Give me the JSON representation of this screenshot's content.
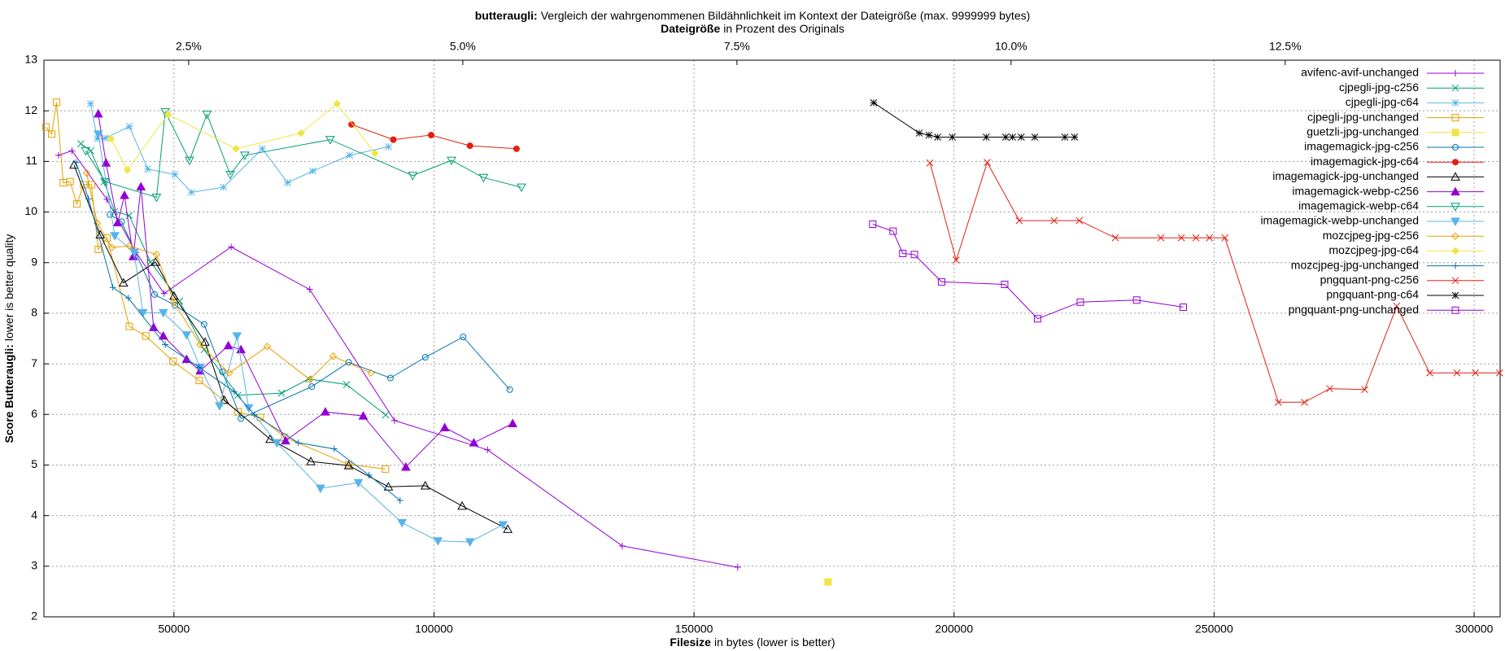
{
  "chart_data": {
    "type": "line",
    "title_bold": "butteraugli:",
    "title": "Vergleich der wahrgenommenen Bildähnlichkeit im Kontext der Dateigröße (max. 9999999 bytes)",
    "x2label_bold": "Dateigröße",
    "x2label": "in Prozent des Originals",
    "xlabel_bold": "Filesize",
    "xlabel": "in bytes (lower is better)",
    "ylabel_bold": "Score Butteraugli:",
    "ylabel": "lower is better quality",
    "xlim": [
      25000,
      305000
    ],
    "xticks": [
      50000,
      100000,
      150000,
      200000,
      250000,
      300000
    ],
    "x2lim": [
      1.18,
      14.46
    ],
    "x2ticks": [
      {
        "value": 2.5,
        "label": "2.5%"
      },
      {
        "value": 5.0,
        "label": "5.0%"
      },
      {
        "value": 7.5,
        "label": "7.5%"
      },
      {
        "value": 10.0,
        "label": "10.0%"
      },
      {
        "value": 12.5,
        "label": "12.5%"
      }
    ],
    "ylim": [
      2,
      13
    ],
    "yticks": [
      2,
      3,
      4,
      5,
      6,
      7,
      8,
      9,
      10,
      11,
      12,
      13
    ],
    "grid": true,
    "legend": "top right",
    "series": [
      {
        "name": "avifenc-avif-unchanged",
        "color": "#9400d3",
        "marker": "plus",
        "x": [
          27800,
          30400,
          37100,
          42700,
          48100,
          61000,
          76100,
          92400,
          110300,
          136200,
          158400
        ],
        "values": [
          11.12,
          11.21,
          10.25,
          9.2,
          8.39,
          9.31,
          8.47,
          5.88,
          5.3,
          3.4,
          2.98
        ]
      },
      {
        "name": "cjpegli-jpg-c256",
        "color": "#009e73",
        "marker": "cross",
        "x": [
          32100,
          34000,
          36600,
          38600,
          41400,
          45500,
          51100,
          55800,
          62300,
          70700,
          75900,
          83200,
          90700
        ],
        "values": [
          11.35,
          11.21,
          10.6,
          10.01,
          9.93,
          9.01,
          8.24,
          7.28,
          6.38,
          6.42,
          6.7,
          6.59,
          5.99
        ]
      },
      {
        "name": "cjpegli-jpg-c64",
        "color": "#56b4e9",
        "marker": "star",
        "x": [
          33960,
          35260,
          36760,
          41420,
          44970,
          50190,
          53360,
          59520,
          66990,
          71840,
          76690,
          83780,
          91240
        ],
        "values": [
          12.14,
          11.45,
          11.46,
          11.69,
          10.85,
          10.74,
          10.39,
          10.49,
          11.25,
          10.58,
          10.81,
          11.12,
          11.29
        ]
      },
      {
        "name": "cjpegli-jpg-unchanged",
        "color": "#e69f00",
        "marker": "square",
        "x": [
          25370,
          26490,
          27430,
          28730,
          30040,
          31340,
          32650,
          34140,
          35450,
          37130,
          41420,
          44590,
          49820,
          54860,
          62320,
          66610,
          71280,
          83590,
          90680
        ],
        "values": [
          11.68,
          11.54,
          12.17,
          10.58,
          10.6,
          10.16,
          10.54,
          10.54,
          9.26,
          9.49,
          7.74,
          7.55,
          7.05,
          6.67,
          6.05,
          5.94,
          5.55,
          5.01,
          4.92
        ]
      },
      {
        "name": "guetzli-jpg-unchanged",
        "color": "#f0e442",
        "marker": "filled-square",
        "x": [
          175770
        ],
        "values": [
          2.69
        ]
      },
      {
        "name": "imagemagick-jpg-c256",
        "color": "#0072b2",
        "marker": "circle",
        "x": [
          37690,
          39930,
          46270,
          50190,
          55790,
          59330,
          62880,
          76500,
          83590,
          91620,
          98330,
          105610,
          114570
        ],
        "values": [
          9.95,
          9.81,
          8.37,
          8.16,
          7.78,
          6.84,
          5.92,
          6.55,
          7.03,
          6.72,
          7.13,
          7.53,
          6.49
        ]
      },
      {
        "name": "imagemagick-jpg-c64",
        "color": "#e51e10",
        "marker": "filled-circle",
        "x": [
          84150,
          92180,
          99450,
          106920,
          115870
        ],
        "values": [
          11.73,
          11.43,
          11.52,
          11.31,
          11.25
        ]
      },
      {
        "name": "imagemagick-jpg-unchanged",
        "color": "#000000",
        "marker": "triangle",
        "x": [
          30780,
          35820,
          40300,
          46460,
          50000,
          55980,
          59710,
          68480,
          76320,
          83590,
          91240,
          98330,
          105420,
          114190
        ],
        "values": [
          10.93,
          9.55,
          8.6,
          9.01,
          8.34,
          7.43,
          6.28,
          5.51,
          5.07,
          4.99,
          4.57,
          4.59,
          4.19,
          3.73
        ]
      },
      {
        "name": "imagemagick-webp-c256",
        "color": "#9400d3",
        "marker": "filled-triangle",
        "x": [
          35450,
          36940,
          39180,
          40490,
          42170,
          43660,
          46090,
          47950,
          52430,
          55040,
          60450,
          62880,
          71460,
          79110,
          86390,
          94600,
          102070,
          107660,
          115130
        ],
        "values": [
          11.94,
          10.97,
          9.79,
          10.33,
          9.12,
          10.5,
          7.72,
          7.55,
          7.09,
          6.86,
          7.36,
          7.28,
          5.48,
          6.05,
          5.97,
          4.96,
          5.74,
          5.44,
          5.82
        ]
      },
      {
        "name": "imagemagick-webp-c64",
        "color": "#009e73",
        "marker": "triangle-down",
        "x": [
          33020,
          36760,
          46650,
          48330,
          52990,
          56350,
          60830,
          63630,
          80050,
          95910,
          103370,
          109530,
          116810
        ],
        "values": [
          11.21,
          10.6,
          10.29,
          11.98,
          11.02,
          11.93,
          10.74,
          11.12,
          11.43,
          10.72,
          11.02,
          10.68,
          10.49
        ]
      },
      {
        "name": "imagemagick-webp-unchanged",
        "color": "#56b4e9",
        "marker": "filled-triangle-down",
        "x": [
          35450,
          38620,
          42350,
          44030,
          47950,
          52430,
          55040,
          58770,
          62130,
          64370,
          69780,
          78180,
          85460,
          93850,
          100760,
          106920,
          113260
        ],
        "values": [
          11.54,
          9.53,
          9.2,
          8.01,
          8.01,
          7.57,
          6.93,
          6.17,
          7.55,
          6.13,
          5.44,
          4.54,
          4.65,
          3.86,
          3.5,
          3.48,
          3.82
        ]
      },
      {
        "name": "mozcjpeg-jpg-c256",
        "color": "#e69f00",
        "marker": "diamond",
        "x": [
          33210,
          35260,
          38060,
          41420,
          46650,
          50000,
          55040,
          60640,
          67920,
          76130,
          80610,
          87880
        ],
        "values": [
          10.77,
          9.78,
          9.3,
          9.33,
          9.16,
          8.22,
          7.38,
          6.82,
          7.34,
          6.69,
          7.15,
          6.82
        ]
      },
      {
        "name": "mozcjpeg-jpg-c64",
        "color": "#f0e442",
        "marker": "filled-diamond",
        "x": [
          37880,
          41050,
          48880,
          61950,
          74450,
          81350,
          88630
        ],
        "values": [
          11.45,
          10.83,
          11.93,
          11.25,
          11.56,
          12.14,
          11.16
        ]
      },
      {
        "name": "mozcjpeg-jpg-unchanged",
        "color": "#0072b2",
        "marker": "plus",
        "x": [
          31160,
          33580,
          38250,
          41230,
          48330,
          54860,
          61580,
          65490,
          73890,
          80790,
          87510,
          93480
        ],
        "values": [
          10.98,
          10.26,
          8.51,
          8.3,
          7.38,
          6.93,
          6.45,
          5.99,
          5.44,
          5.32,
          4.8,
          4.3
        ]
      },
      {
        "name": "pngquant-png-c256",
        "color": "#e51e10",
        "marker": "cross",
        "x": [
          195370,
          200410,
          206380,
          212530,
          219250,
          224100,
          231010,
          239780,
          243700,
          246500,
          249110,
          252090,
          262360,
          267390,
          272240,
          278960,
          285120,
          291460,
          296690,
          300240,
          304900
        ],
        "values": [
          10.97,
          9.05,
          10.98,
          9.83,
          9.83,
          9.83,
          9.49,
          9.49,
          9.49,
          9.49,
          9.49,
          9.49,
          6.24,
          6.24,
          6.51,
          6.49,
          8.14,
          6.82,
          6.82,
          6.82,
          6.82
        ]
      },
      {
        "name": "pngquant-png-c64",
        "color": "#000000",
        "marker": "star",
        "x": [
          184540,
          193310,
          195180,
          196860,
          199660,
          206190,
          209920,
          211230,
          212910,
          215520,
          221310,
          223170
        ],
        "values": [
          12.16,
          11.56,
          11.52,
          11.48,
          11.48,
          11.48,
          11.48,
          11.48,
          11.48,
          11.48,
          11.48,
          11.48
        ]
      },
      {
        "name": "pngquant-png-unchanged",
        "color": "#9400d3",
        "marker": "square",
        "x": [
          184360,
          188280,
          190140,
          192380,
          197610,
          209730,
          216070,
          224280,
          235110,
          244070
        ],
        "values": [
          9.76,
          9.62,
          9.18,
          9.16,
          8.62,
          8.57,
          7.89,
          8.22,
          8.26,
          8.12
        ]
      }
    ]
  }
}
